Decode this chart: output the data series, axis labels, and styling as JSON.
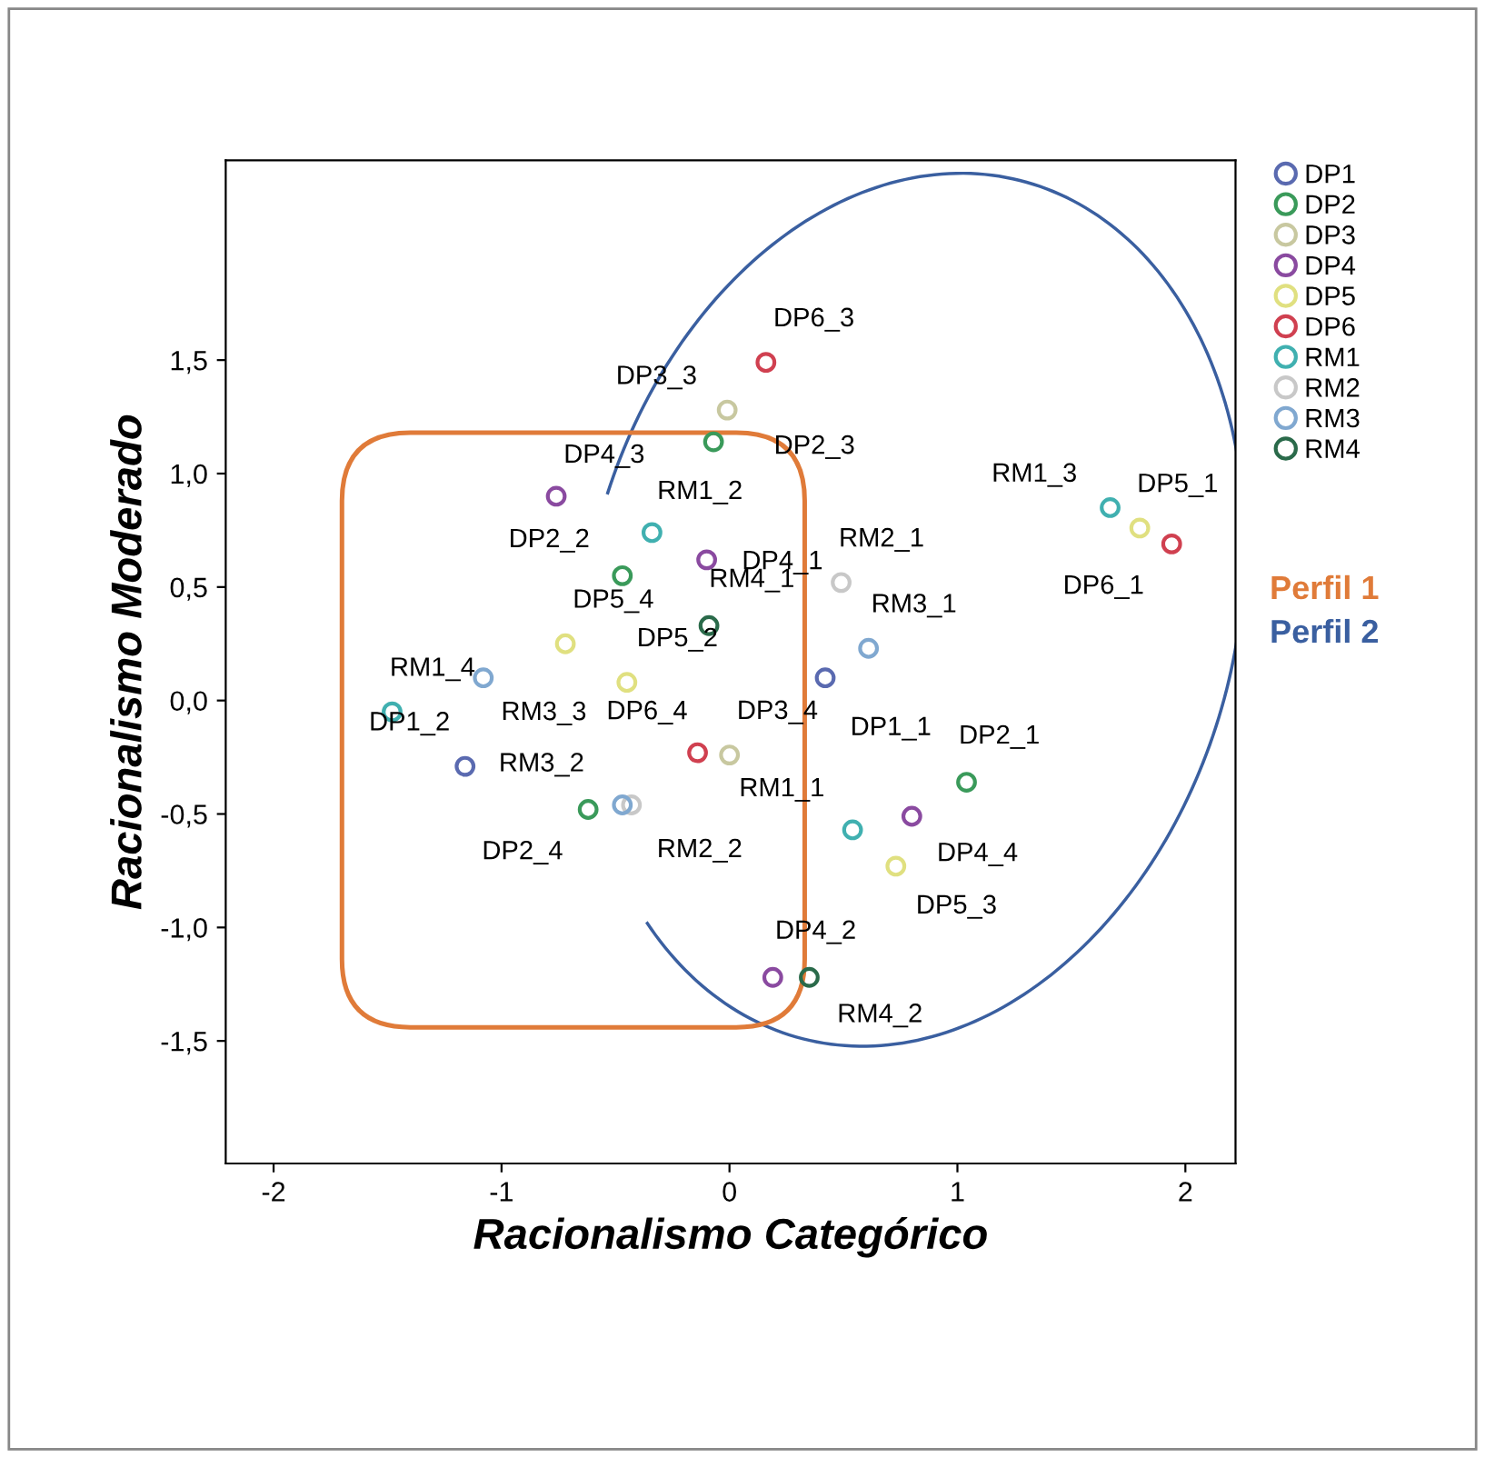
{
  "chart_data": {
    "type": "scatter",
    "xlabel": "Racionalismo Categórico",
    "ylabel": "Racionalismo Moderado",
    "xlim": [
      -2.21,
      2.22
    ],
    "ylim": [
      -2.04,
      2.38
    ],
    "xticks": [
      -2,
      -1,
      0,
      1,
      2
    ],
    "yticks": [
      {
        "value": -1.5,
        "label": "-1,5"
      },
      {
        "value": -1.0,
        "label": "-1,0"
      },
      {
        "value": -0.5,
        "label": "-0,5"
      },
      {
        "value": 0.0,
        "label": "0,0"
      },
      {
        "value": 0.5,
        "label": "0,5"
      },
      {
        "value": 1.0,
        "label": "1,0"
      },
      {
        "value": 1.5,
        "label": "1,5"
      }
    ],
    "grid": false,
    "legend": "right",
    "marker": "circle",
    "series": [
      {
        "name": "DP1",
        "color": "#5a6ab0",
        "x": [
          0.42,
          -1.16
        ],
        "values": [
          0.1,
          -0.29
        ]
      },
      {
        "name": "DP2",
        "color": "#3a9a5a",
        "x": [
          1.04,
          -0.47,
          -0.07,
          -0.62
        ],
        "values": [
          -0.36,
          0.55,
          1.14,
          -0.48
        ]
      },
      {
        "name": "DP3",
        "color": "#c8c8a0",
        "x": [
          -0.01,
          0.0
        ],
        "values": [
          1.28,
          -0.24
        ]
      },
      {
        "name": "DP4",
        "color": "#8a4aa0",
        "x": [
          -0.1,
          0.19,
          -0.76,
          0.8
        ],
        "values": [
          0.62,
          -1.22,
          0.9,
          -0.51
        ]
      },
      {
        "name": "DP5",
        "color": "#e0e080",
        "x": [
          1.8,
          -0.45,
          0.73,
          -0.72
        ],
        "values": [
          0.76,
          0.08,
          -0.73,
          0.25
        ]
      },
      {
        "name": "DP6",
        "color": "#d04050",
        "x": [
          1.94,
          0.16,
          -0.14
        ],
        "values": [
          0.69,
          1.49,
          -0.23
        ]
      },
      {
        "name": "RM1",
        "color": "#40b0b0",
        "x": [
          0.54,
          -0.34,
          1.67,
          -1.48
        ],
        "values": [
          -0.57,
          0.74,
          0.85,
          -0.05
        ]
      },
      {
        "name": "RM2",
        "color": "#c8c8c8",
        "x": [
          0.49,
          -0.43
        ],
        "values": [
          0.52,
          -0.46
        ]
      },
      {
        "name": "RM3",
        "color": "#80a8d0",
        "x": [
          0.61,
          -0.47,
          -1.08
        ],
        "values": [
          0.23,
          -0.46,
          0.1
        ]
      },
      {
        "name": "RM4",
        "color": "#2a6a4a",
        "x": [
          -0.09,
          0.35
        ],
        "values": [
          0.33,
          -1.22
        ]
      }
    ],
    "annotations": [
      {
        "text": "DP1_1",
        "x": 0.42,
        "y": 0.1
      },
      {
        "text": "DP1_2",
        "x": -1.16,
        "y": -0.29
      },
      {
        "text": "DP2_1",
        "x": 1.04,
        "y": -0.36
      },
      {
        "text": "DP2_2",
        "x": -0.47,
        "y": 0.55
      },
      {
        "text": "DP2_3",
        "x": -0.07,
        "y": 1.14
      },
      {
        "text": "DP2_4",
        "x": -0.62,
        "y": -0.48
      },
      {
        "text": "DP3_3",
        "x": -0.01,
        "y": 1.28
      },
      {
        "text": "DP3_4",
        "x": 0.0,
        "y": -0.24
      },
      {
        "text": "DP4_1",
        "x": -0.1,
        "y": 0.62
      },
      {
        "text": "DP4_2",
        "x": 0.19,
        "y": -1.22
      },
      {
        "text": "DP4_3",
        "x": -0.76,
        "y": 0.9
      },
      {
        "text": "DP4_4",
        "x": 0.8,
        "y": -0.51
      },
      {
        "text": "DP5_1",
        "x": 1.8,
        "y": 0.76
      },
      {
        "text": "DP5_2",
        "x": -0.45,
        "y": 0.08
      },
      {
        "text": "DP5_3",
        "x": 0.73,
        "y": -0.73
      },
      {
        "text": "DP5_4",
        "x": -0.72,
        "y": 0.25
      },
      {
        "text": "DP6_1",
        "x": 1.94,
        "y": 0.69
      },
      {
        "text": "DP6_3",
        "x": 0.16,
        "y": 1.49
      },
      {
        "text": "DP6_4",
        "x": -0.14,
        "y": -0.23
      },
      {
        "text": "RM1_1",
        "x": 0.54,
        "y": -0.57
      },
      {
        "text": "RM1_2",
        "x": -0.34,
        "y": 0.74
      },
      {
        "text": "RM1_3",
        "x": 1.67,
        "y": 0.85
      },
      {
        "text": "RM1_4",
        "x": -1.48,
        "y": -0.05
      },
      {
        "text": "RM2_1",
        "x": 0.49,
        "y": 0.52
      },
      {
        "text": "RM2_2",
        "x": -0.43,
        "y": -0.46
      },
      {
        "text": "RM3_1",
        "x": 0.61,
        "y": 0.23
      },
      {
        "text": "RM3_2",
        "x": -0.47,
        "y": -0.46
      },
      {
        "text": "RM3_3",
        "x": -1.08,
        "y": 0.1
      },
      {
        "text": "RM4_1",
        "x": -0.09,
        "y": 0.33
      },
      {
        "text": "RM4_2",
        "x": 0.35,
        "y": -1.22
      },
      "Perfil 1",
      "Perfil 2"
    ]
  }
}
